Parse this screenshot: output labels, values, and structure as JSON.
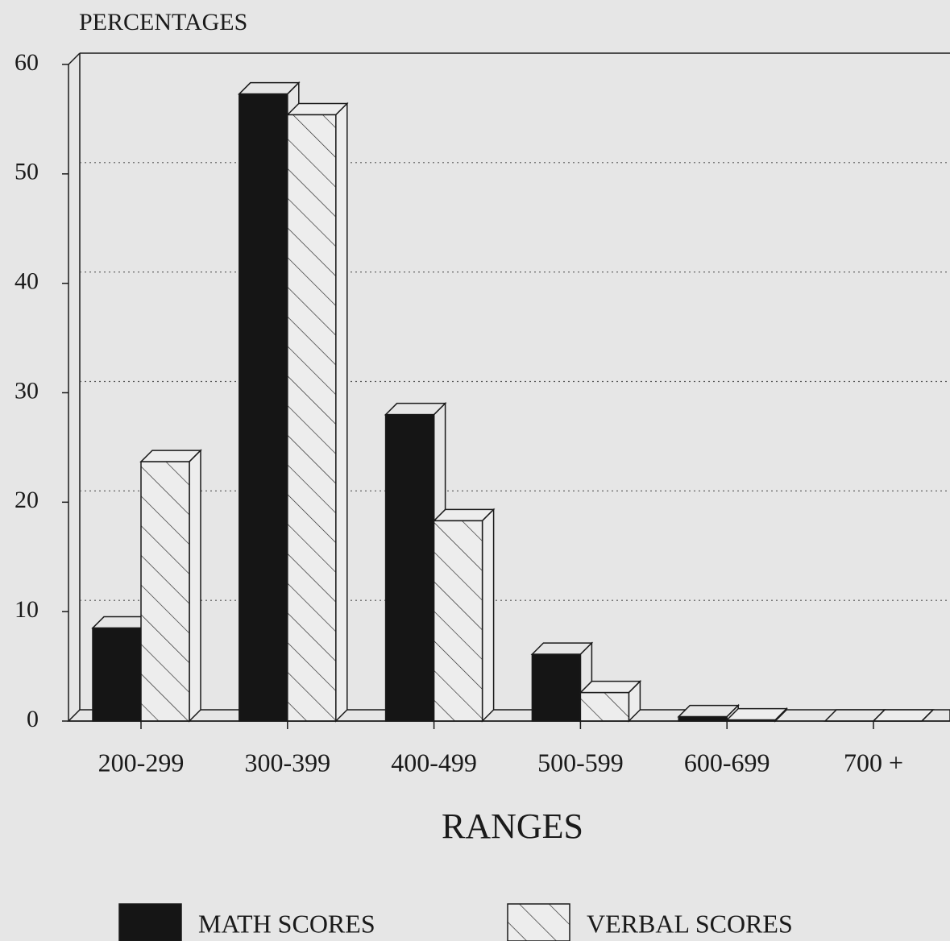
{
  "chart_data": {
    "type": "bar3d",
    "y_axis_title": "PERCENTAGES",
    "x_axis_title": "RANGES",
    "categories": [
      "200-299",
      "300-399",
      "400-499",
      "500-599",
      "600-699",
      "700 +"
    ],
    "series": [
      {
        "name": "MATH SCORES",
        "color": "#151515",
        "hatch": false,
        "values": [
          8.5,
          57.3,
          28,
          6.1,
          0.4,
          0
        ]
      },
      {
        "name": "VERBAL SCORES",
        "color": "#ededed",
        "hatch": true,
        "values": [
          23.7,
          55.4,
          18.3,
          2.6,
          0.1,
          0
        ]
      }
    ],
    "ylim": [
      0,
      60
    ],
    "yticks": [
      0,
      10,
      20,
      30,
      40,
      50,
      60
    ],
    "grid": true
  }
}
